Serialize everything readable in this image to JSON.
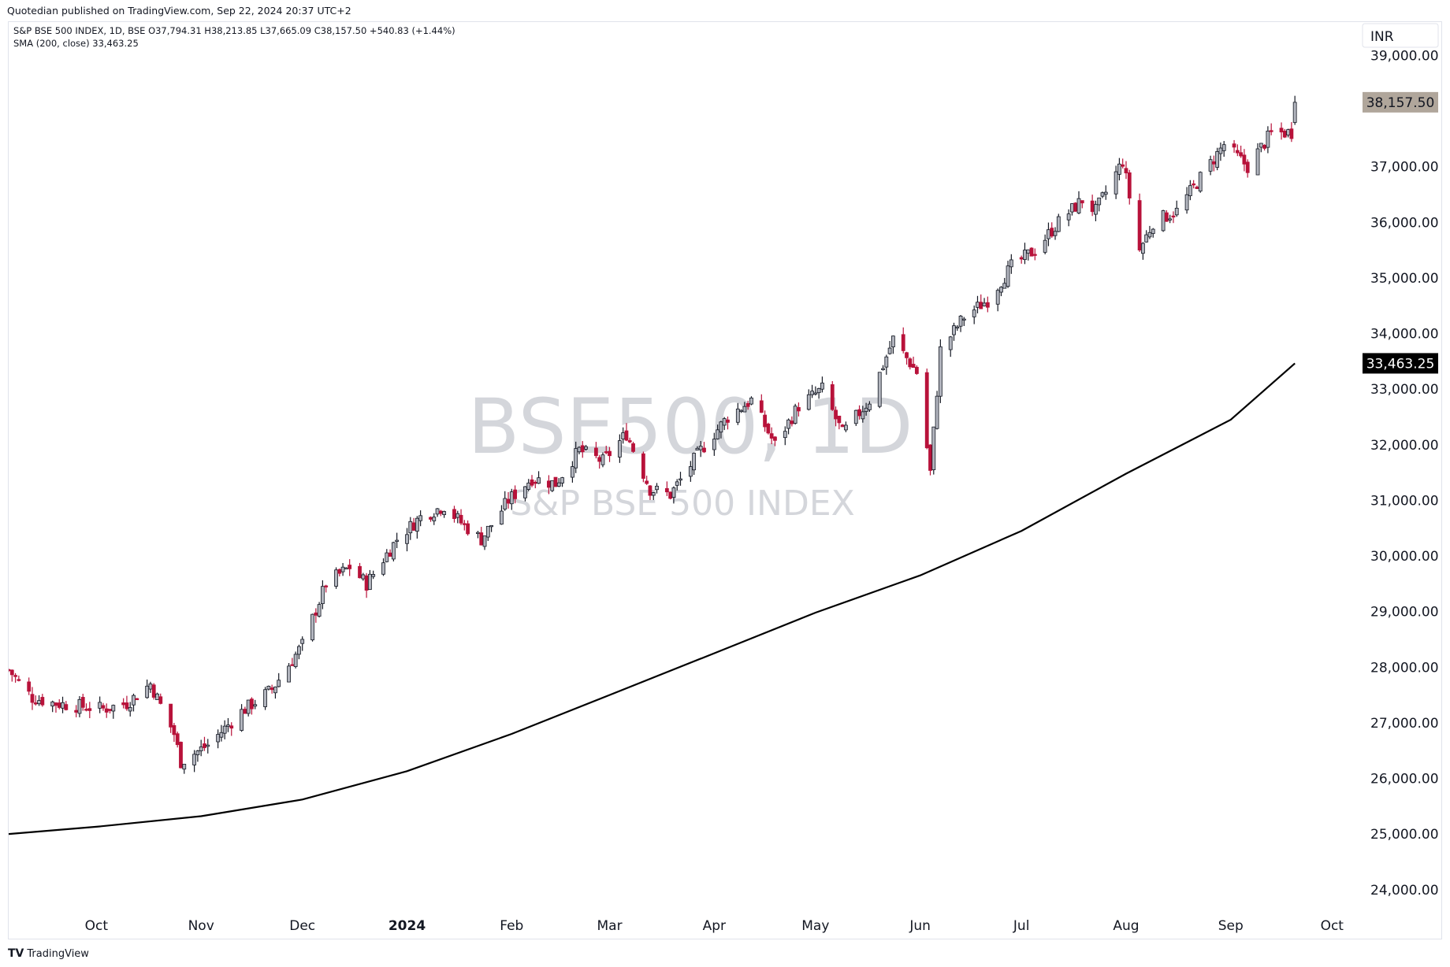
{
  "header": {
    "publisher_line": "Quotedian published on TradingView.com, Sep 22, 2024 20:37 UTC+2"
  },
  "footer": {
    "logo_mark": "TV",
    "logo_text": "TradingView"
  },
  "legend": {
    "line1": "S&P BSE 500 INDEX, 1D, BSE  O37,794.31  H38,213.85  L37,665.09  C38,157.50  +540.83 (+1.44%)",
    "line2": "SMA (200, close)  33,463.25"
  },
  "watermark": {
    "main": "BSE500, 1D",
    "sub": "S&P BSE 500 INDEX"
  },
  "colors": {
    "up_fill": "#b2b5be",
    "down_fill": "#b8123a",
    "wick_up": "#131722",
    "wick_down": "#b8123a",
    "sma_line": "#000000",
    "last_price_badge": "#b0a69b",
    "sma_badge": "#000000"
  },
  "chart_data": {
    "type": "candlestick",
    "title": "S&P BSE 500 INDEX, 1D, BSE",
    "currency": "INR",
    "ylim": [
      23600,
      39600
    ],
    "y_ticks": [
      {
        "value": 24000,
        "label": "24,000.00"
      },
      {
        "value": 25000,
        "label": "25,000.00"
      },
      {
        "value": 26000,
        "label": "26,000.00"
      },
      {
        "value": 27000,
        "label": "27,000.00"
      },
      {
        "value": 28000,
        "label": "28,000.00"
      },
      {
        "value": 29000,
        "label": "29,000.00"
      },
      {
        "value": 30000,
        "label": "30,000.00"
      },
      {
        "value": 31000,
        "label": "31,000.00"
      },
      {
        "value": 32000,
        "label": "32,000.00"
      },
      {
        "value": 33000,
        "label": "33,000.00"
      },
      {
        "value": 34000,
        "label": "34,000.00"
      },
      {
        "value": 35000,
        "label": "35,000.00"
      },
      {
        "value": 36000,
        "label": "36,000.00"
      },
      {
        "value": 37000,
        "label": "37,000.00"
      },
      {
        "value": 39000,
        "label": "39,000.00"
      }
    ],
    "x_ticks": [
      {
        "date": "2023-10-01",
        "label": "Oct",
        "bold": false
      },
      {
        "date": "2023-11-01",
        "label": "Nov",
        "bold": false
      },
      {
        "date": "2023-12-01",
        "label": "Dec",
        "bold": false
      },
      {
        "date": "2024-01-01",
        "label": "2024",
        "bold": true
      },
      {
        "date": "2024-02-01",
        "label": "Feb",
        "bold": false
      },
      {
        "date": "2024-03-01",
        "label": "Mar",
        "bold": false
      },
      {
        "date": "2024-04-01",
        "label": "Apr",
        "bold": false
      },
      {
        "date": "2024-05-01",
        "label": "May",
        "bold": false
      },
      {
        "date": "2024-06-01",
        "label": "Jun",
        "bold": false
      },
      {
        "date": "2024-07-01",
        "label": "Jul",
        "bold": false
      },
      {
        "date": "2024-08-01",
        "label": "Aug",
        "bold": false
      },
      {
        "date": "2024-09-01",
        "label": "Sep",
        "bold": false
      },
      {
        "date": "2024-10-01",
        "label": "Oct",
        "bold": false
      }
    ],
    "xlim": [
      "2023-09-05",
      "2024-10-07"
    ],
    "last_price": {
      "value": 38157.5,
      "label": "38,157.50"
    },
    "sma_last": {
      "value": 33463.25,
      "label": "33,463.25"
    },
    "series": [
      {
        "type": "candlestick",
        "ohlc_date_close_anchors": [
          [
            "2023-09-05",
            27950
          ],
          [
            "2023-09-12",
            27450
          ],
          [
            "2023-09-19",
            27350
          ],
          [
            "2023-09-26",
            27300
          ],
          [
            "2023-10-03",
            27250
          ],
          [
            "2023-10-10",
            27350
          ],
          [
            "2023-10-17",
            27700
          ],
          [
            "2023-10-24",
            26800
          ],
          [
            "2023-10-26",
            26300
          ],
          [
            "2023-11-03",
            26600
          ],
          [
            "2023-11-13",
            27200
          ],
          [
            "2023-11-22",
            27600
          ],
          [
            "2023-12-01",
            28400
          ],
          [
            "2023-12-08",
            29500
          ],
          [
            "2023-12-15",
            29800
          ],
          [
            "2023-12-20",
            29500
          ],
          [
            "2023-12-29",
            30300
          ],
          [
            "2024-01-05",
            30700
          ],
          [
            "2024-01-12",
            30900
          ],
          [
            "2024-01-17",
            30600
          ],
          [
            "2024-01-23",
            30300
          ],
          [
            "2024-01-31",
            31000
          ],
          [
            "2024-02-07",
            31400
          ],
          [
            "2024-02-14",
            31300
          ],
          [
            "2024-02-21",
            31900
          ],
          [
            "2024-02-28",
            31700
          ],
          [
            "2024-03-06",
            32200
          ],
          [
            "2024-03-13",
            31200
          ],
          [
            "2024-03-19",
            31100
          ],
          [
            "2024-03-28",
            31900
          ],
          [
            "2024-04-05",
            32500
          ],
          [
            "2024-04-12",
            32800
          ],
          [
            "2024-04-19",
            32000
          ],
          [
            "2024-04-26",
            32700
          ],
          [
            "2024-05-03",
            33000
          ],
          [
            "2024-05-09",
            32200
          ],
          [
            "2024-05-17",
            32800
          ],
          [
            "2024-05-24",
            33900
          ],
          [
            "2024-05-31",
            33300
          ],
          [
            "2024-06-04",
            31500
          ],
          [
            "2024-06-07",
            33700
          ],
          [
            "2024-06-14",
            34300
          ],
          [
            "2024-06-21",
            34600
          ],
          [
            "2024-06-28",
            35200
          ],
          [
            "2024-07-05",
            35500
          ],
          [
            "2024-07-12",
            36000
          ],
          [
            "2024-07-19",
            36400
          ],
          [
            "2024-07-23",
            36200
          ],
          [
            "2024-07-31",
            37100
          ],
          [
            "2024-08-05",
            35500
          ],
          [
            "2024-08-09",
            36000
          ],
          [
            "2024-08-16",
            36200
          ],
          [
            "2024-08-23",
            36800
          ],
          [
            "2024-08-30",
            37400
          ],
          [
            "2024-09-06",
            37000
          ],
          [
            "2024-09-13",
            37600
          ],
          [
            "2024-09-19",
            37617
          ],
          [
            "2024-09-20",
            38157.5
          ]
        ]
      },
      {
        "name": "SMA (200, close)",
        "type": "line",
        "points": [
          [
            "2023-09-05",
            25000
          ],
          [
            "2023-10-01",
            25130
          ],
          [
            "2023-11-01",
            25320
          ],
          [
            "2023-12-01",
            25620
          ],
          [
            "2024-01-01",
            26130
          ],
          [
            "2024-02-01",
            26800
          ],
          [
            "2024-03-01",
            27500
          ],
          [
            "2024-04-01",
            28250
          ],
          [
            "2024-05-01",
            28980
          ],
          [
            "2024-06-01",
            29650
          ],
          [
            "2024-07-01",
            30450
          ],
          [
            "2024-08-01",
            31480
          ],
          [
            "2024-09-01",
            32450
          ],
          [
            "2024-09-20",
            33463.25
          ]
        ]
      }
    ]
  }
}
